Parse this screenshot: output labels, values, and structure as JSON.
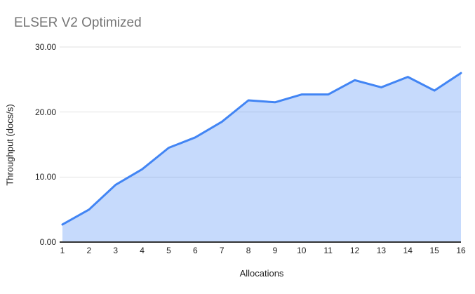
{
  "title": {
    "text": "ELSER V2 Optimized",
    "color": "#757575"
  },
  "chart_data": {
    "type": "area",
    "title": "ELSER V2 Optimized",
    "xlabel": "Allocations",
    "ylabel": "Throughput (docs/s)",
    "x": [
      1,
      2,
      3,
      4,
      5,
      6,
      7,
      8,
      9,
      10,
      11,
      12,
      13,
      14,
      15,
      16
    ],
    "values": [
      2.7,
      5.0,
      8.8,
      11.2,
      14.5,
      16.1,
      18.5,
      21.8,
      21.5,
      22.7,
      22.7,
      24.9,
      23.8,
      25.4,
      23.3,
      26.0
    ],
    "ylim": [
      0,
      30
    ],
    "yticks": [
      {
        "value": 0,
        "label": "0.00"
      },
      {
        "value": 10,
        "label": "10.00"
      },
      {
        "value": 20,
        "label": "20.00"
      },
      {
        "value": 30,
        "label": "30.00"
      }
    ],
    "grid": true,
    "legend_position": "none",
    "series_name": "ELSER V2 Optimized",
    "line_color": "#4285f4",
    "fill_color": "#4285f4",
    "fill_opacity": 0.3,
    "gridline_color": "#e2e2e2",
    "axis_line_color": "#333333"
  }
}
